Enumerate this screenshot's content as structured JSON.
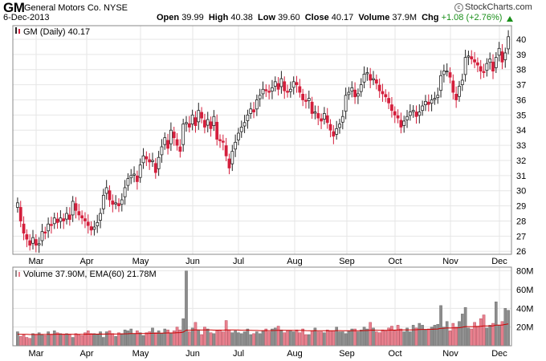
{
  "header": {
    "symbol": "GM",
    "company": "General Motors Co.",
    "exchange": "NYSE",
    "date": "6-Dec-2013",
    "brand": "StockCharts.com",
    "quote": [
      {
        "label": "Open",
        "value": "39.99"
      },
      {
        "label": "High",
        "value": "40.38"
      },
      {
        "label": "Low",
        "value": "39.60"
      },
      {
        "label": "Close",
        "value": "40.17"
      },
      {
        "label": "Volume",
        "value": "37.9M"
      }
    ],
    "chg_label": "Chg",
    "chg_value": "+1.08 (+2.76%)",
    "chg_color": "#1a8f1a"
  },
  "price_legend": "GM (Daily) 40.17",
  "volume_legend": "Volume 37.90M, EMA(60) 21.78M",
  "colors": {
    "up": "#222222",
    "down": "#d41f3c",
    "volume_up": "#8c8c8c",
    "volume_down": "#e8808e",
    "ema": "#cc0000",
    "grid": "#e6e6e6",
    "frame": "#888888"
  },
  "chart_data": {
    "type": "candlestick",
    "x_ticks": [
      "Mar",
      "Apr",
      "May",
      "Jun",
      "Jul",
      "Aug",
      "Sep",
      "Oct",
      "Nov",
      "Dec"
    ],
    "price_axis": {
      "ticks": [
        26,
        27,
        28,
        29,
        30,
        31,
        32,
        33,
        34,
        35,
        36,
        37,
        38,
        39,
        40
      ],
      "range": [
        25.8,
        40.9
      ]
    },
    "volume_axis": {
      "ticks": [
        20,
        40,
        60,
        80
      ],
      "tick_labels": [
        "20M",
        "40M",
        "60M",
        "80M"
      ],
      "unit": "M",
      "range": [
        0,
        84
      ]
    },
    "closes": [
      29.2,
      28.0,
      27.2,
      26.8,
      26.4,
      26.9,
      26.4,
      26.5,
      27.3,
      27.2,
      27.8,
      27.7,
      28.2,
      27.9,
      28.2,
      28.0,
      28.5,
      28.1,
      29.3,
      28.7,
      28.4,
      28.2,
      28.0,
      27.7,
      27.4,
      27.6,
      27.9,
      28.5,
      29.7,
      30.2,
      29.4,
      29.1,
      29.2,
      29.0,
      29.4,
      30.2,
      30.8,
      31.0,
      31.1,
      30.6,
      31.7,
      32.3,
      32.1,
      31.9,
      32.0,
      31.2,
      32.2,
      32.9,
      33.5,
      32.8,
      34.0,
      33.5,
      33.0,
      32.6,
      34.4,
      34.5,
      34.2,
      35.0,
      34.3,
      35.3,
      34.8,
      34.2,
      34.7,
      34.1,
      34.9,
      33.4,
      33.3,
      33.2,
      32.3,
      31.5,
      32.6,
      33.2,
      33.8,
      34.2,
      34.5,
      35.0,
      35.4,
      35.2,
      36.0,
      36.3,
      36.7,
      36.6,
      36.5,
      36.8,
      37.2,
      36.7,
      37.4,
      36.6,
      36.5,
      36.7,
      37.2,
      37.0,
      36.5,
      36.0,
      35.9,
      36.1,
      35.1,
      35.2,
      34.8,
      34.6,
      35.1,
      34.5,
      34.0,
      33.6,
      34.1,
      34.4,
      34.9,
      36.3,
      36.5,
      36.8,
      36.2,
      36.4,
      37.0,
      37.7,
      37.8,
      37.3,
      37.4,
      37.1,
      36.6,
      36.4,
      36.2,
      35.8,
      35.3,
      35.0,
      34.8,
      34.2,
      34.6,
      34.9,
      35.2,
      35.3,
      34.9,
      35.2,
      35.6,
      35.9,
      35.7,
      36.0,
      36.1,
      36.3,
      37.6,
      37.9,
      37.9,
      37.5,
      36.5,
      36.0,
      36.9,
      37.3,
      38.8,
      38.9,
      38.7,
      38.5,
      38.3,
      37.9,
      37.8,
      38.4,
      38.7,
      37.9,
      38.8,
      39.4,
      38.5,
      39.1,
      40.17
    ],
    "volumes": [
      15,
      10,
      12,
      9,
      8,
      13,
      12,
      14,
      12,
      11,
      15,
      12,
      16,
      14,
      13,
      12,
      13,
      12,
      9,
      13,
      12,
      11,
      14,
      16,
      13,
      13,
      12,
      15,
      9,
      15,
      16,
      13,
      10,
      14,
      13,
      17,
      16,
      18,
      13,
      16,
      14,
      11,
      14,
      15,
      19,
      14,
      16,
      13,
      18,
      17,
      13,
      16,
      20,
      17,
      29,
      80,
      15,
      19,
      25,
      17,
      12,
      20,
      18,
      14,
      13,
      16,
      17,
      15,
      27,
      17,
      14,
      16,
      14,
      13,
      15,
      18,
      12,
      13,
      15,
      13,
      16,
      18,
      15,
      18,
      19,
      21,
      17,
      14,
      16,
      16,
      15,
      17,
      14,
      18,
      12,
      12,
      16,
      19,
      15,
      15,
      14,
      17,
      16,
      16,
      20,
      15,
      15,
      13,
      16,
      18,
      18,
      15,
      17,
      20,
      18,
      25,
      19,
      15,
      14,
      17,
      16,
      19,
      21,
      16,
      22,
      18,
      15,
      19,
      15,
      22,
      19,
      24,
      22,
      17,
      18,
      20,
      22,
      23,
      43,
      20,
      26,
      16,
      24,
      20,
      26,
      34,
      41,
      19,
      18,
      25,
      21,
      29,
      33,
      19,
      22,
      24,
      47,
      22,
      26,
      40,
      37.9
    ],
    "ema_last": 21.78
  }
}
